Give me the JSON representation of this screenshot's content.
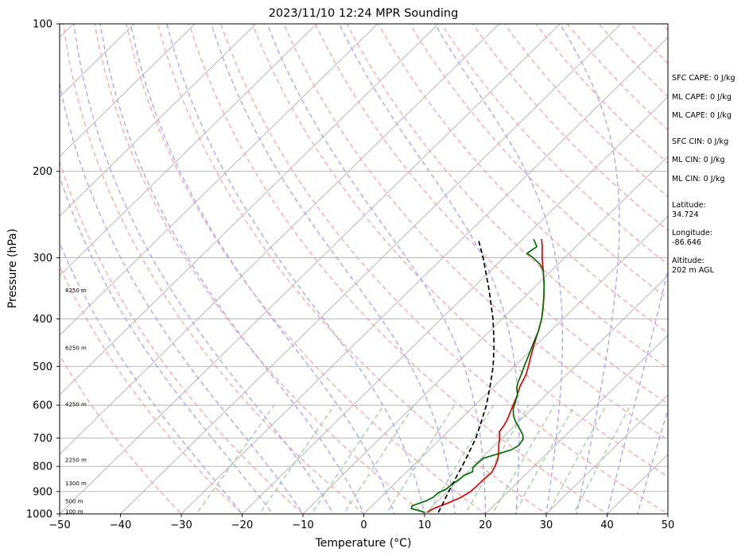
{
  "chart_data": {
    "type": "line",
    "title": "2023/11/10 12:24 MPR Sounding",
    "xlabel": "Temperature (°C)",
    "ylabel": "Pressure (hPa)",
    "xlim": [
      -50,
      50
    ],
    "ylim": [
      1000,
      100
    ],
    "y_scale": "log",
    "x_ticks": [
      -50,
      -40,
      -30,
      -20,
      -10,
      0,
      10,
      20,
      30,
      40,
      50
    ],
    "x_tick_labels": [
      "−50",
      "−40",
      "−30",
      "−20",
      "−10",
      "0",
      "10",
      "20",
      "30",
      "40",
      "50"
    ],
    "y_ticks": [
      100,
      200,
      300,
      400,
      500,
      600,
      700,
      800,
      900,
      1000
    ],
    "y_tick_labels": [
      "100",
      "200",
      "300",
      "400",
      "500",
      "600",
      "700",
      "800",
      "900",
      "1000"
    ],
    "grid": true,
    "skew": true,
    "series": [
      {
        "color": "#e00000",
        "points": [
          {
            "p": 993,
            "t": 10.2
          },
          {
            "p": 975,
            "t": 10.6
          },
          {
            "p": 950,
            "t": 12.0
          },
          {
            "p": 925,
            "t": 13.2
          },
          {
            "p": 900,
            "t": 13.8
          },
          {
            "p": 875,
            "t": 13.9
          },
          {
            "p": 850,
            "t": 13.9
          },
          {
            "p": 825,
            "t": 14.1
          },
          {
            "p": 800,
            "t": 13.6
          },
          {
            "p": 775,
            "t": 12.9
          },
          {
            "p": 750,
            "t": 11.9
          },
          {
            "p": 725,
            "t": 10.7
          },
          {
            "p": 700,
            "t": 9.6
          },
          {
            "p": 680,
            "t": 8.5
          },
          {
            "p": 660,
            "t": 8.2
          },
          {
            "p": 640,
            "t": 7.7
          },
          {
            "p": 620,
            "t": 7.0
          },
          {
            "p": 600,
            "t": 6.3
          },
          {
            "p": 575,
            "t": 5.4
          },
          {
            "p": 550,
            "t": 4.3
          },
          {
            "p": 520,
            "t": 3.3
          },
          {
            "p": 500,
            "t": 2.3
          },
          {
            "p": 475,
            "t": 0.9
          },
          {
            "p": 450,
            "t": -0.5
          },
          {
            "p": 425,
            "t": -1.9
          },
          {
            "p": 400,
            "t": -3.5
          },
          {
            "p": 380,
            "t": -5.1
          },
          {
            "p": 360,
            "t": -6.9
          },
          {
            "p": 340,
            "t": -8.9
          },
          {
            "p": 320,
            "t": -11.2
          },
          {
            "p": 300,
            "t": -13.7
          },
          {
            "p": 285,
            "t": -15.5
          },
          {
            "p": 275,
            "t": -16.9
          }
        ]
      },
      {
        "color": "#007000",
        "points": [
          {
            "p": 993,
            "t": 9.8
          },
          {
            "p": 985,
            "t": 8.6
          },
          {
            "p": 975,
            "t": 6.9
          },
          {
            "p": 963,
            "t": 6.6
          },
          {
            "p": 950,
            "t": 7.4
          },
          {
            "p": 940,
            "t": 8.1
          },
          {
            "p": 925,
            "t": 8.6
          },
          {
            "p": 905,
            "t": 8.7
          },
          {
            "p": 890,
            "t": 9.4
          },
          {
            "p": 870,
            "t": 9.5
          },
          {
            "p": 850,
            "t": 9.9
          },
          {
            "p": 835,
            "t": 10.0
          },
          {
            "p": 820,
            "t": 10.8
          },
          {
            "p": 805,
            "t": 10.2
          },
          {
            "p": 790,
            "t": 10.2
          },
          {
            "p": 770,
            "t": 10.3
          },
          {
            "p": 755,
            "t": 11.9
          },
          {
            "p": 740,
            "t": 13.5
          },
          {
            "p": 725,
            "t": 14.0
          },
          {
            "p": 705,
            "t": 13.7
          },
          {
            "p": 690,
            "t": 12.9
          },
          {
            "p": 670,
            "t": 11.3
          },
          {
            "p": 650,
            "t": 9.6
          },
          {
            "p": 630,
            "t": 8.1
          },
          {
            "p": 610,
            "t": 6.9
          },
          {
            "p": 590,
            "t": 6.1
          },
          {
            "p": 570,
            "t": 5.2
          },
          {
            "p": 555,
            "t": 4.1
          },
          {
            "p": 540,
            "t": 3.3
          },
          {
            "p": 520,
            "t": 2.5
          },
          {
            "p": 500,
            "t": 1.6
          },
          {
            "p": 475,
            "t": 0.5
          },
          {
            "p": 450,
            "t": -0.7
          },
          {
            "p": 425,
            "t": -1.9
          },
          {
            "p": 400,
            "t": -3.5
          },
          {
            "p": 380,
            "t": -5.1
          },
          {
            "p": 360,
            "t": -6.9
          },
          {
            "p": 340,
            "t": -8.9
          },
          {
            "p": 320,
            "t": -11.2
          },
          {
            "p": 310,
            "t": -12.8
          },
          {
            "p": 300,
            "t": -15.2
          },
          {
            "p": 294,
            "t": -16.9
          },
          {
            "p": 285,
            "t": -16.4
          },
          {
            "p": 275,
            "t": -18.2
          }
        ]
      },
      {
        "color": "#000000",
        "style": "dashed",
        "points": [
          {
            "p": 993,
            "t": 12.0
          },
          {
            "p": 960,
            "t": 11.4
          },
          {
            "p": 925,
            "t": 10.7
          },
          {
            "p": 900,
            "t": 10.2
          },
          {
            "p": 850,
            "t": 9.2
          },
          {
            "p": 800,
            "t": 8.2
          },
          {
            "p": 750,
            "t": 7.0
          },
          {
            "p": 700,
            "t": 5.7
          },
          {
            "p": 650,
            "t": 3.9
          },
          {
            "p": 600,
            "t": 1.9
          },
          {
            "p": 550,
            "t": -0.6
          },
          {
            "p": 500,
            "t": -3.5
          },
          {
            "p": 450,
            "t": -7.1
          },
          {
            "p": 400,
            "t": -11.5
          },
          {
            "p": 350,
            "t": -16.9
          },
          {
            "p": 300,
            "t": -23.4
          },
          {
            "p": 275,
            "t": -27.3
          }
        ]
      }
    ],
    "height_labels": [
      {
        "p": 988,
        "label": "100 m"
      },
      {
        "p": 942,
        "label": "500 m"
      },
      {
        "p": 866,
        "label": "1300 m"
      },
      {
        "p": 776,
        "label": "2250 m"
      },
      {
        "p": 597,
        "label": "4250 m"
      },
      {
        "p": 458,
        "label": "6250 m"
      },
      {
        "p": 350,
        "label": "8250 m"
      }
    ],
    "stats": [
      "SFC CAPE: 0 J/kg",
      "ML CAPE: 0 J/kg",
      "ML CAPE: 0 J/kg",
      "SFC CIN: 0 J/kg",
      "ML CIN: 0 J/kg",
      "ML CIN: 0 J/kg",
      "Latitude:",
      "34.724",
      "Longitude:",
      "-86.646",
      "Altitude:",
      "202 m AGL"
    ],
    "colors": {
      "isotherm": "#b0b0b0",
      "dry_adiabat": "#ffa8a8",
      "moist_adiabat": "#a8a8ff",
      "mixing_ratio": "#9fd49f"
    }
  }
}
